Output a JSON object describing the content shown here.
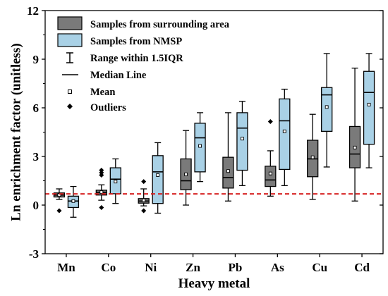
{
  "chart_data": {
    "type": "box",
    "xlabel": "Heavy metal",
    "ylabel": "Ln enrichment factor (unitless)",
    "ylim": [
      -3,
      12
    ],
    "yticks": [
      -3,
      0,
      3,
      6,
      9,
      12
    ],
    "categories": [
      "Mn",
      "Co",
      "Ni",
      "Zn",
      "Pb",
      "As",
      "Cu",
      "Cd"
    ],
    "reference_line": {
      "y": 0.69,
      "style": "dashed",
      "color": "#d62020"
    },
    "legend": {
      "placement": "top-left",
      "entries": [
        "Samples from surrounding area",
        "Samples from NMSP",
        "Range within 1.5IQR",
        "Median Line",
        "Mean",
        "Outliers"
      ]
    },
    "series": [
      {
        "name": "Samples from surrounding area",
        "color": "#7a7a7a",
        "boxes": [
          {
            "category": "Mn",
            "whisker_low": 0.35,
            "q1": 0.5,
            "median": 0.62,
            "q3": 0.75,
            "whisker_high": 1.0,
            "mean": 0.62,
            "outliers": [
              -0.35
            ]
          },
          {
            "category": "Co",
            "whisker_low": 0.3,
            "q1": 0.62,
            "median": 0.78,
            "q3": 0.92,
            "whisker_high": 1.25,
            "mean": 0.8,
            "outliers": [
              1.85,
              2.0,
              2.15,
              -0.15
            ]
          },
          {
            "category": "Ni",
            "whisker_low": -0.05,
            "q1": 0.12,
            "median": 0.25,
            "q3": 0.4,
            "whisker_high": 1.0,
            "mean": 0.3,
            "outliers": [
              1.45,
              -0.35
            ]
          },
          {
            "category": "Zn",
            "whisker_low": 0.0,
            "q1": 0.95,
            "median": 1.5,
            "q3": 2.85,
            "whisker_high": 4.6,
            "mean": 1.9,
            "outliers": []
          },
          {
            "category": "Pb",
            "whisker_low": 0.25,
            "q1": 1.05,
            "median": 1.7,
            "q3": 2.95,
            "whisker_high": 5.7,
            "mean": 2.1,
            "outliers": []
          },
          {
            "category": "As",
            "whisker_low": 0.55,
            "q1": 1.15,
            "median": 1.55,
            "q3": 2.4,
            "whisker_high": 3.35,
            "mean": 1.95,
            "outliers": [
              5.15
            ]
          },
          {
            "category": "Cu",
            "whisker_low": 0.35,
            "q1": 1.75,
            "median": 2.85,
            "q3": 4.0,
            "whisker_high": 5.6,
            "mean": 2.95,
            "outliers": []
          },
          {
            "category": "Cd",
            "whisker_low": 0.25,
            "q1": 2.3,
            "median": 3.15,
            "q3": 4.85,
            "whisker_high": 8.45,
            "mean": 3.55,
            "outliers": []
          }
        ]
      },
      {
        "name": "Samples from NMSP",
        "color": "#a9d1e6",
        "boxes": [
          {
            "category": "Mn",
            "whisker_low": -0.75,
            "q1": -0.15,
            "median": 0.25,
            "q3": 0.55,
            "whisker_high": 1.15,
            "mean": 0.25,
            "outliers": []
          },
          {
            "category": "Co",
            "whisker_low": 0.1,
            "q1": 0.7,
            "median": 1.6,
            "q3": 2.3,
            "whisker_high": 2.85,
            "mean": 1.45,
            "outliers": []
          },
          {
            "category": "Ni",
            "whisker_low": -0.5,
            "q1": 0.1,
            "median": 2.05,
            "q3": 3.05,
            "whisker_high": 3.85,
            "mean": 1.85,
            "outliers": []
          },
          {
            "category": "Zn",
            "whisker_low": 1.45,
            "q1": 2.05,
            "median": 4.15,
            "q3": 5.05,
            "whisker_high": 5.7,
            "mean": 3.65,
            "outliers": []
          },
          {
            "category": "Pb",
            "whisker_low": 1.2,
            "q1": 2.15,
            "median": 4.75,
            "q3": 5.7,
            "whisker_high": 6.4,
            "mean": 4.1,
            "outliers": []
          },
          {
            "category": "As",
            "whisker_low": 1.2,
            "q1": 2.2,
            "median": 5.2,
            "q3": 6.55,
            "whisker_high": 7.15,
            "mean": 4.55,
            "outliers": []
          },
          {
            "category": "Cu",
            "whisker_low": 2.35,
            "q1": 4.55,
            "median": 6.8,
            "q3": 7.25,
            "whisker_high": 9.35,
            "mean": 6.05,
            "outliers": []
          },
          {
            "category": "Cd",
            "whisker_low": 2.3,
            "q1": 3.75,
            "median": 6.95,
            "q3": 8.25,
            "whisker_high": 9.35,
            "mean": 6.2,
            "outliers": []
          }
        ]
      }
    ]
  }
}
